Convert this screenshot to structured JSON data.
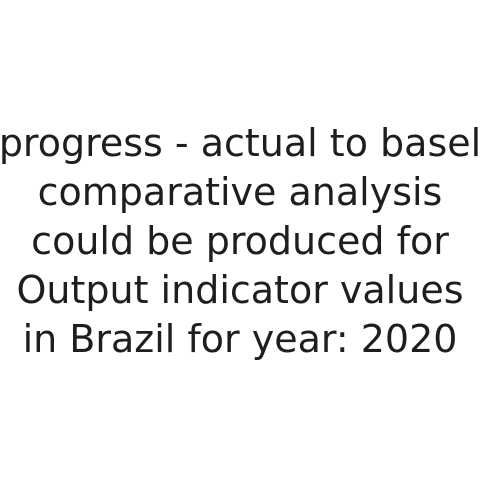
{
  "message": {
    "lines": [
      "progress - actual to basel",
      "comparative analysis",
      "could be produced for",
      "Output indicator values",
      "in Brazil for year: 2020"
    ]
  }
}
